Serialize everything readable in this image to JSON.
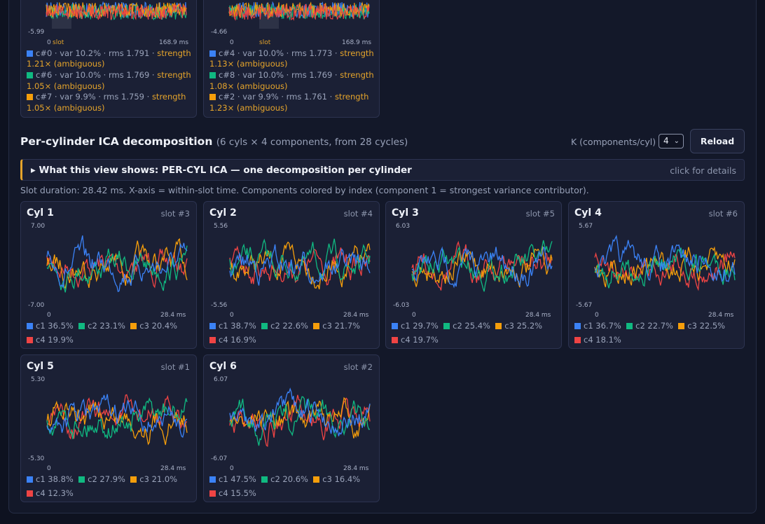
{
  "colors": {
    "c1": "#3b82f6",
    "c2": "#10b981",
    "c3": "#f59e0b",
    "c4": "#ef4444",
    "accent": "#e5a42b"
  },
  "top_panels": [
    {
      "ymin": "-5.99",
      "x0": "0",
      "slot_label": "slot",
      "xmax": "168.9 ms",
      "slot_color": "#e5a42b",
      "rows": [
        {
          "color": "#3b82f6",
          "text": "c#0 · var 10.2% · rms 1.791 · ",
          "strength": "strength",
          "cont": "1.21× (ambiguous)"
        },
        {
          "color": "#10b981",
          "text": "c#6 · var 10.0% · rms 1.769 · ",
          "strength": "strength",
          "cont": "1.05× (ambiguous)"
        },
        {
          "color": "#f59e0b",
          "text": "c#7 · var 9.9% · rms 1.759 · ",
          "strength": "strength",
          "cont": "1.05× (ambiguous)"
        }
      ]
    },
    {
      "ymin": "-4.66",
      "x0": "0",
      "slot_label": "slot",
      "xmax": "168.9 ms",
      "slot_color": "#e5a42b",
      "rows": [
        {
          "color": "#3b82f6",
          "text": "c#4 · var 10.0% · rms 1.773 · ",
          "strength": "strength",
          "cont": "1.13× (ambiguous)"
        },
        {
          "color": "#10b981",
          "text": "c#8 · var 10.0% · rms 1.769 · ",
          "strength": "strength",
          "cont": "1.08× (ambiguous)"
        },
        {
          "color": "#f59e0b",
          "text": "c#2 · var 9.9% · rms 1.761 · ",
          "strength": "strength",
          "cont": "1.23× (ambiguous)"
        }
      ]
    }
  ],
  "section": {
    "title": "Per-cylinder ICA decomposition",
    "subtitle": "(6 cyls × 4 components, from 28 cycles)",
    "k_label": "K (components/cyl)",
    "k_value": "4",
    "reload_label": "Reload",
    "explain_title": "▸ What this view shows: PER-CYL ICA — one decomposition per cylinder",
    "explain_hint": "click for details",
    "note": "Slot duration: 28.42 ms. X-axis = within-slot time. Components colored by index (component 1 = strongest variance contributor)."
  },
  "cylinders": [
    {
      "title": "Cyl 1",
      "slot": "slot #3",
      "ymax": "7.00",
      "ymin": "-7.00",
      "x0": "0",
      "xmax": "28.4 ms",
      "legend": [
        {
          "label": "c1 36.5%",
          "c": "c1"
        },
        {
          "label": "c2 23.1%",
          "c": "c2"
        },
        {
          "label": "c3 20.4%",
          "c": "c3"
        },
        {
          "label": "c4 19.9%",
          "c": "c4"
        }
      ]
    },
    {
      "title": "Cyl 2",
      "slot": "slot #4",
      "ymax": "5.56",
      "ymin": "-5.56",
      "x0": "0",
      "xmax": "28.4 ms",
      "legend": [
        {
          "label": "c1 38.7%",
          "c": "c1"
        },
        {
          "label": "c2 22.6%",
          "c": "c2"
        },
        {
          "label": "c3 21.7%",
          "c": "c3"
        },
        {
          "label": "c4 16.9%",
          "c": "c4"
        }
      ]
    },
    {
      "title": "Cyl 3",
      "slot": "slot #5",
      "ymax": "6.03",
      "ymin": "-6.03",
      "x0": "0",
      "xmax": "28.4 ms",
      "legend": [
        {
          "label": "c1 29.7%",
          "c": "c1"
        },
        {
          "label": "c2 25.4%",
          "c": "c2"
        },
        {
          "label": "c3 25.2%",
          "c": "c3"
        },
        {
          "label": "c4 19.7%",
          "c": "c4"
        }
      ]
    },
    {
      "title": "Cyl 4",
      "slot": "slot #6",
      "ymax": "5.67",
      "ymin": "-5.67",
      "x0": "0",
      "xmax": "28.4 ms",
      "legend": [
        {
          "label": "c1 36.7%",
          "c": "c1"
        },
        {
          "label": "c2 22.7%",
          "c": "c2"
        },
        {
          "label": "c3 22.5%",
          "c": "c3"
        },
        {
          "label": "c4 18.1%",
          "c": "c4"
        }
      ]
    },
    {
      "title": "Cyl 5",
      "slot": "slot #1",
      "ymax": "5.30",
      "ymin": "-5.30",
      "x0": "0",
      "xmax": "28.4 ms",
      "legend": [
        {
          "label": "c1 38.8%",
          "c": "c1"
        },
        {
          "label": "c2 27.9%",
          "c": "c2"
        },
        {
          "label": "c3 21.0%",
          "c": "c3"
        },
        {
          "label": "c4 12.3%",
          "c": "c4"
        }
      ]
    },
    {
      "title": "Cyl 6",
      "slot": "slot #2",
      "ymax": "6.07",
      "ymin": "-6.07",
      "x0": "0",
      "xmax": "28.4 ms",
      "legend": [
        {
          "label": "c1 47.5%",
          "c": "c1"
        },
        {
          "label": "c2 20.6%",
          "c": "c2"
        },
        {
          "label": "c3 16.4%",
          "c": "c3"
        },
        {
          "label": "c4 15.5%",
          "c": "c4"
        }
      ]
    }
  ]
}
